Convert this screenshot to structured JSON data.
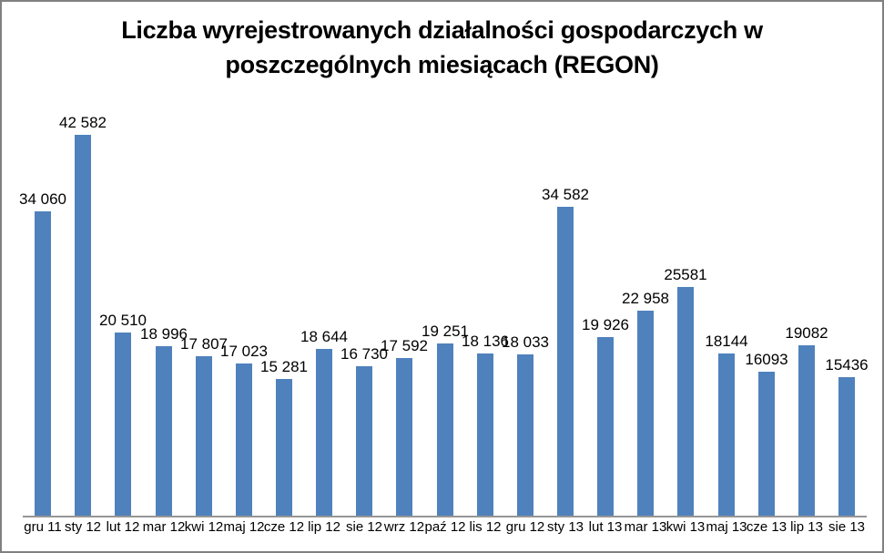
{
  "frame": {
    "background": "#ffffff",
    "border_color": "#808080"
  },
  "chart_data": {
    "type": "bar",
    "title": "Liczba wyrejestrowanych działalności gospodarczych w poszczególnych miesiącach (REGON)",
    "title_lines": [
      "Liczba wyrejestrowanych działalności gospodarczych w",
      "poszczególnych miesiącach (REGON)"
    ],
    "categories": [
      "gru 11",
      "sty 12",
      "lut 12",
      "mar 12",
      "kwi 12",
      "maj 12",
      "cze 12",
      "lip 12",
      "sie 12",
      "wrz 12",
      "paź 12",
      "lis 12",
      "gru 12",
      "sty 13",
      "lut 13",
      "mar 13",
      "kwi 13",
      "maj 13",
      "cze 13",
      "lip 13",
      "sie 13"
    ],
    "values": [
      34060,
      42582,
      20510,
      18996,
      17807,
      17023,
      15281,
      18644,
      16730,
      17592,
      19251,
      18136,
      18033,
      34582,
      19926,
      22958,
      25581,
      18144,
      16093,
      19082,
      15436
    ],
    "value_labels": [
      "34 060",
      "42 582",
      "20 510",
      "18 996",
      "17 807",
      "17 023",
      "15 281",
      "18 644",
      "16 730",
      "17 592",
      "19 251",
      "18 136",
      "18 033",
      "34 582",
      "19 926",
      "22 958",
      "25581",
      "18144",
      "16093",
      "19082",
      "15436"
    ],
    "xlabel": "",
    "ylabel": "",
    "ylim": [
      0,
      42582
    ],
    "grid": false,
    "legend": false,
    "data_labels_position": "above-bars",
    "bar_color": "#4F81BD",
    "axis_line_color": "#969696",
    "text_color": "#000000"
  }
}
